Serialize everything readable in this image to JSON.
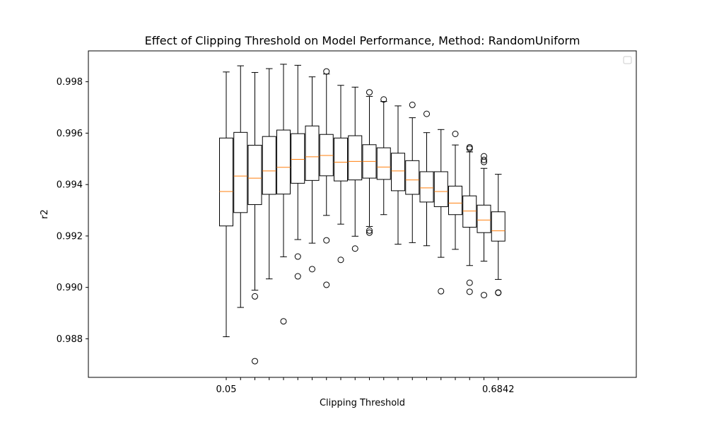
{
  "chart_data": {
    "type": "box",
    "title": "Effect of Clipping Threshold on Model Performance, Method: RandomUniform",
    "xlabel": "Clipping Threshold",
    "ylabel": "r2",
    "ylim": [
      0.9865,
      0.9992
    ],
    "y_ticks": [
      "0.988",
      "0.990",
      "0.992",
      "0.994",
      "0.996",
      "0.998"
    ],
    "x_ticks_visible": [
      "0.05",
      "0.6842"
    ],
    "legend": "top-right, empty",
    "colors": {
      "box": "#000000",
      "median": "#ff7f0e"
    },
    "boxes": [
      {
        "whislo": 0.98808,
        "q1": 0.99239,
        "med": 0.99373,
        "q3": 0.99581,
        "whishi": 0.99838,
        "fliers": []
      },
      {
        "whislo": 0.98922,
        "q1": 0.99291,
        "med": 0.99433,
        "q3": 0.99603,
        "whishi": 0.99862,
        "fliers": []
      },
      {
        "whislo": 0.98989,
        "q1": 0.99322,
        "med": 0.99425,
        "q3": 0.99553,
        "whishi": 0.99836,
        "fliers": [
          0.98965,
          0.98713
        ]
      },
      {
        "whislo": 0.99033,
        "q1": 0.99362,
        "med": 0.99453,
        "q3": 0.99587,
        "whishi": 0.99851,
        "fliers": []
      },
      {
        "whislo": 0.99119,
        "q1": 0.99363,
        "med": 0.99467,
        "q3": 0.99612,
        "whishi": 0.99868,
        "fliers": [
          0.98868
        ]
      },
      {
        "whislo": 0.99186,
        "q1": 0.99405,
        "med": 0.99498,
        "q3": 0.99598,
        "whishi": 0.99864,
        "fliers": [
          0.9912,
          0.99043
        ]
      },
      {
        "whislo": 0.99172,
        "q1": 0.99416,
        "med": 0.99508,
        "q3": 0.99628,
        "whishi": 0.99819,
        "fliers": [
          0.99071
        ]
      },
      {
        "whislo": 0.9928,
        "q1": 0.99434,
        "med": 0.99513,
        "q3": 0.99595,
        "whishi": 0.9983,
        "fliers": [
          0.9984,
          0.99183,
          0.9901
        ]
      },
      {
        "whislo": 0.99246,
        "q1": 0.99414,
        "med": 0.99487,
        "q3": 0.99581,
        "whishi": 0.99786,
        "fliers": [
          0.99107
        ]
      },
      {
        "whislo": 0.99199,
        "q1": 0.99418,
        "med": 0.9949,
        "q3": 0.9959,
        "whishi": 0.99779,
        "fliers": [
          0.99151
        ]
      },
      {
        "whislo": 0.99237,
        "q1": 0.99425,
        "med": 0.9949,
        "q3": 0.99555,
        "whishi": 0.99743,
        "fliers": [
          0.99759,
          0.99221,
          0.99213
        ]
      },
      {
        "whislo": 0.99283,
        "q1": 0.9942,
        "med": 0.99468,
        "q3": 0.99543,
        "whishi": 0.99723,
        "fliers": [
          0.99731
        ]
      },
      {
        "whislo": 0.99168,
        "q1": 0.99376,
        "med": 0.99453,
        "q3": 0.99522,
        "whishi": 0.99706,
        "fliers": []
      },
      {
        "whislo": 0.99174,
        "q1": 0.99362,
        "med": 0.99418,
        "q3": 0.99493,
        "whishi": 0.9966,
        "fliers": [
          0.9971
        ]
      },
      {
        "whislo": 0.99162,
        "q1": 0.99332,
        "med": 0.99387,
        "q3": 0.9945,
        "whishi": 0.99602,
        "fliers": [
          0.99675
        ]
      },
      {
        "whislo": 0.99117,
        "q1": 0.99314,
        "med": 0.99373,
        "q3": 0.9945,
        "whishi": 0.99614,
        "fliers": [
          0.98985
        ]
      },
      {
        "whislo": 0.99148,
        "q1": 0.99283,
        "med": 0.99328,
        "q3": 0.99394,
        "whishi": 0.99554,
        "fliers": [
          0.99597
        ]
      },
      {
        "whislo": 0.99085,
        "q1": 0.99234,
        "med": 0.99297,
        "q3": 0.99356,
        "whishi": 0.99527,
        "fliers": [
          0.99545,
          0.9954,
          0.99018,
          0.98983
        ]
      },
      {
        "whislo": 0.99102,
        "q1": 0.99213,
        "med": 0.99262,
        "q3": 0.9932,
        "whishi": 0.99463,
        "fliers": [
          0.9951,
          0.99496,
          0.99488,
          0.9897
        ]
      },
      {
        "whislo": 0.99031,
        "q1": 0.9918,
        "med": 0.9922,
        "q3": 0.99294,
        "whishi": 0.9944,
        "fliers": [
          0.9898,
          0.98979
        ]
      }
    ]
  }
}
